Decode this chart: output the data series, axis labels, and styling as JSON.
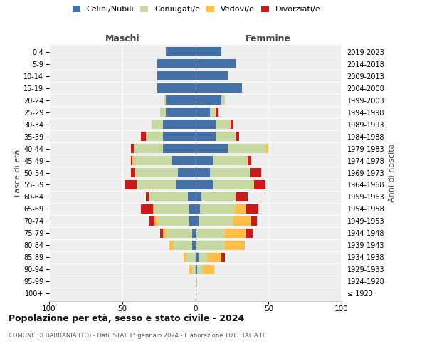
{
  "age_groups": [
    "100+",
    "95-99",
    "90-94",
    "85-89",
    "80-84",
    "75-79",
    "70-74",
    "65-69",
    "60-64",
    "55-59",
    "50-54",
    "45-49",
    "40-44",
    "35-39",
    "30-34",
    "25-29",
    "20-24",
    "15-19",
    "10-14",
    "5-9",
    "0-4"
  ],
  "birth_years": [
    "≤ 1923",
    "1924-1928",
    "1929-1933",
    "1934-1938",
    "1939-1943",
    "1944-1948",
    "1949-1953",
    "1954-1958",
    "1959-1963",
    "1964-1968",
    "1969-1973",
    "1974-1978",
    "1979-1983",
    "1984-1988",
    "1989-1993",
    "1994-1998",
    "1999-2003",
    "2004-2008",
    "2009-2013",
    "2014-2018",
    "2019-2023"
  ],
  "maschi": {
    "celibi": [
      0,
      0,
      0,
      0,
      2,
      2,
      4,
      4,
      5,
      13,
      12,
      16,
      22,
      22,
      22,
      20,
      20,
      26,
      26,
      26,
      20
    ],
    "coniugati": [
      0,
      0,
      2,
      6,
      13,
      18,
      22,
      24,
      27,
      27,
      29,
      26,
      20,
      12,
      8,
      4,
      1,
      0,
      0,
      0,
      0
    ],
    "vedovi": [
      0,
      0,
      2,
      2,
      3,
      2,
      2,
      1,
      0,
      0,
      0,
      1,
      0,
      0,
      0,
      0,
      0,
      0,
      0,
      0,
      0
    ],
    "divorziati": [
      0,
      0,
      0,
      0,
      0,
      2,
      4,
      8,
      2,
      8,
      3,
      1,
      2,
      3,
      0,
      0,
      0,
      0,
      0,
      0,
      0
    ]
  },
  "femmine": {
    "nubili": [
      0,
      0,
      1,
      2,
      0,
      0,
      2,
      3,
      4,
      12,
      10,
      12,
      22,
      14,
      14,
      10,
      18,
      32,
      22,
      28,
      18
    ],
    "coniugate": [
      0,
      1,
      4,
      6,
      20,
      20,
      24,
      24,
      24,
      27,
      27,
      24,
      26,
      14,
      10,
      4,
      2,
      0,
      0,
      0,
      0
    ],
    "vedove": [
      0,
      0,
      8,
      10,
      14,
      15,
      12,
      8,
      0,
      1,
      0,
      0,
      2,
      0,
      0,
      0,
      0,
      0,
      0,
      0,
      0
    ],
    "divorziate": [
      0,
      0,
      0,
      2,
      0,
      4,
      4,
      8,
      8,
      8,
      8,
      2,
      0,
      2,
      2,
      2,
      0,
      0,
      0,
      0,
      0
    ]
  },
  "colors": {
    "celibi": "#4472a8",
    "coniugati": "#c5d9a0",
    "vedovi": "#ffbf47",
    "divorziati": "#cc1a1a"
  },
  "xlim": 100,
  "title": "Popolazione per età, sesso e stato civile - 2024",
  "subtitle": "COMUNE DI BARBANIA (TO) - Dati ISTAT 1° gennaio 2024 - Elaborazione TUTTITALIA.IT",
  "ylabel_left": "Fasce di età",
  "ylabel_right": "Anni di nascita",
  "bg_color": "#eeeeee"
}
